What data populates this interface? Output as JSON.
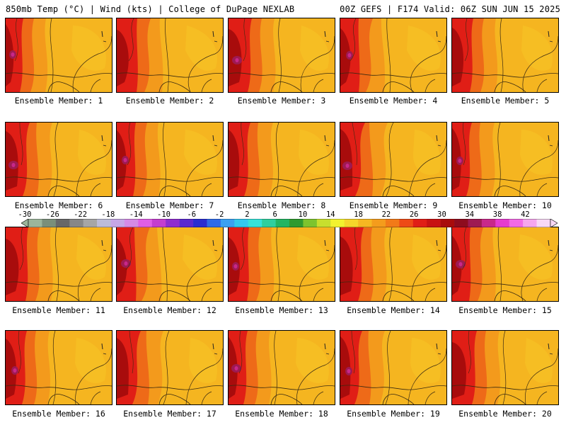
{
  "header": {
    "left_title": "850mb Temp (°C) | Wind (kts) | College of DuPage NEXLAB",
    "right_title": "00Z GEFS | F174 Valid: 06Z SUN JUN 15 2025"
  },
  "members": [
    {
      "label": "Ensemble Member: 1"
    },
    {
      "label": "Ensemble Member: 2"
    },
    {
      "label": "Ensemble Member: 3"
    },
    {
      "label": "Ensemble Member: 4"
    },
    {
      "label": "Ensemble Member: 5"
    },
    {
      "label": "Ensemble Member: 6"
    },
    {
      "label": "Ensemble Member: 7"
    },
    {
      "label": "Ensemble Member: 8"
    },
    {
      "label": "Ensemble Member: 9"
    },
    {
      "label": "Ensemble Member: 10"
    },
    {
      "label": "Ensemble Member: 11"
    },
    {
      "label": "Ensemble Member: 12"
    },
    {
      "label": "Ensemble Member: 13"
    },
    {
      "label": "Ensemble Member: 14"
    },
    {
      "label": "Ensemble Member: 15"
    },
    {
      "label": "Ensemble Member: 16"
    },
    {
      "label": "Ensemble Member: 17"
    },
    {
      "label": "Ensemble Member: 18"
    },
    {
      "label": "Ensemble Member: 19"
    },
    {
      "label": "Ensemble Member: 20"
    }
  ],
  "colorbar": {
    "labels": [
      "-30",
      "-26",
      "-22",
      "-18",
      "-14",
      "-10",
      "-6",
      "-2",
      "2",
      "6",
      "10",
      "14",
      "18",
      "22",
      "26",
      "30",
      "34",
      "38",
      "42"
    ],
    "colors": [
      "#9bb59b",
      "#7a8f7a",
      "#686868",
      "#878787",
      "#a6a6a6",
      "#bcbcd8",
      "#c6a6e6",
      "#d58ae6",
      "#e05ee6",
      "#c43ecf",
      "#8f2dcf",
      "#5a29cf",
      "#2a2dd0",
      "#2f6be8",
      "#3ba0f0",
      "#33c8ee",
      "#35e2d9",
      "#2fcf9e",
      "#23b562",
      "#2f9a2f",
      "#7dc42e",
      "#c7df2e",
      "#f2f22e",
      "#f6d52a",
      "#f6b822",
      "#f49c1c",
      "#f27a18",
      "#ee4a16",
      "#e01e16",
      "#c81212",
      "#a80c0c",
      "#8e0c1e",
      "#9e1a52",
      "#c8288a",
      "#e63ccf",
      "#f26ae6",
      "#f6a6ee",
      "#f8d8f6"
    ]
  }
}
